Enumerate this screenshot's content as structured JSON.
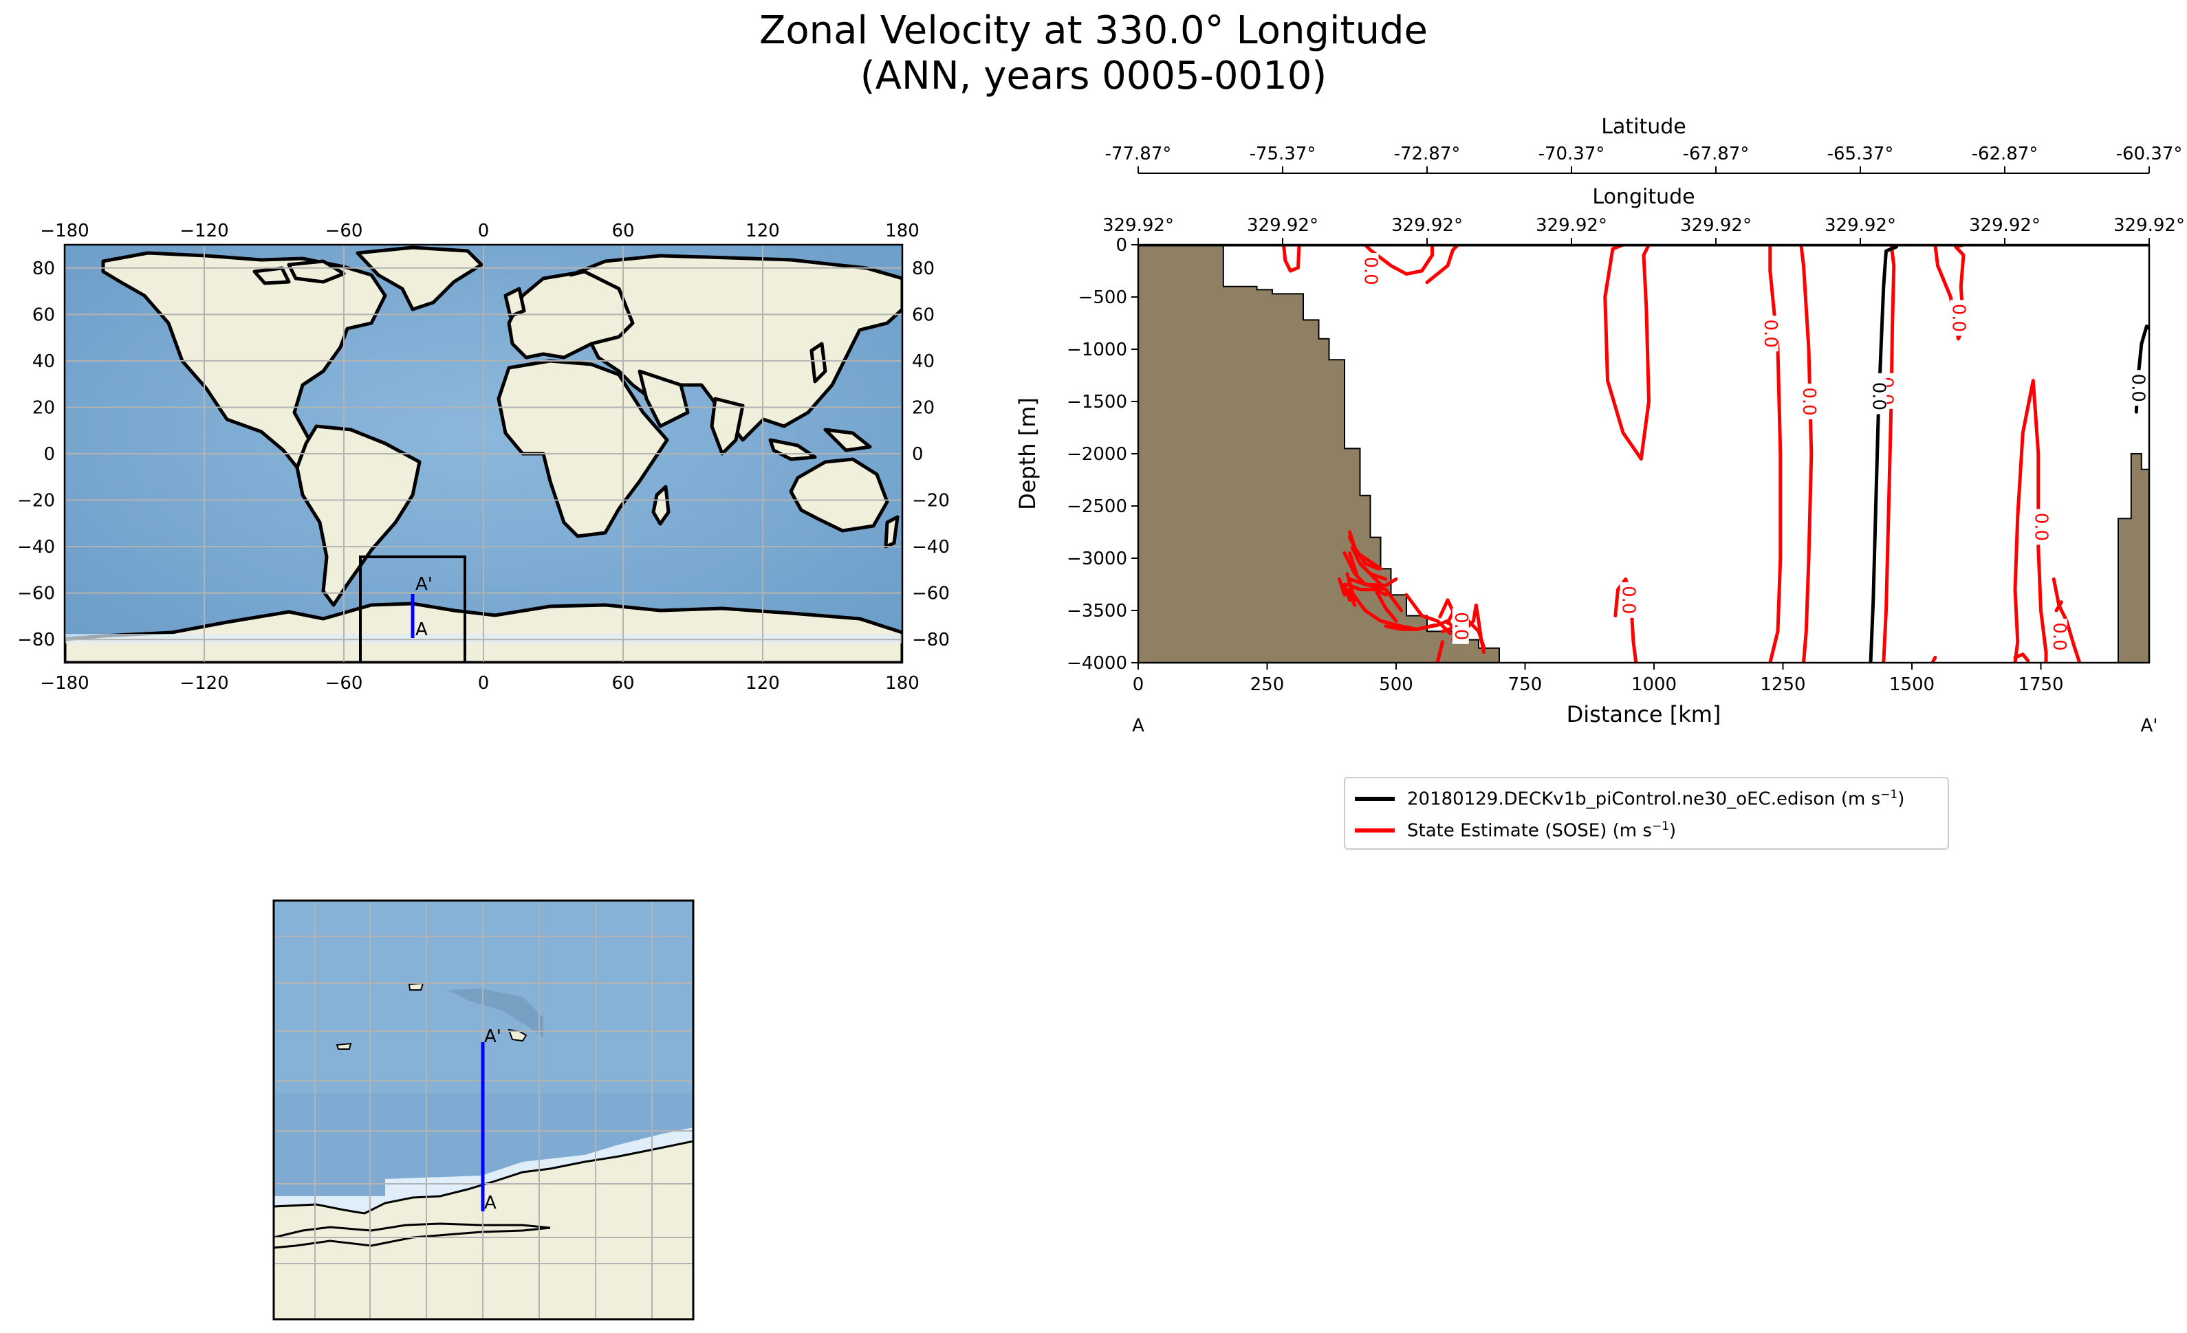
{
  "title": {
    "line1": "Zonal Velocity at 330.0° Longitude",
    "line2": "(ANN, years 0005-0010)"
  },
  "colors": {
    "ocean": "#7fabd2",
    "land": "#efefdb",
    "ice": "#e0eefa",
    "grid": "#b3b3b3",
    "bathymetry": "#8f8064",
    "model_contour": "#000000",
    "obs_contour": "#ff0000",
    "transect": "#0000ff"
  },
  "world_map": {
    "x_ticks": [
      "−180",
      "−120",
      "−60",
      "0",
      "60",
      "120",
      "180"
    ],
    "y_ticks": [
      "80",
      "60",
      "40",
      "20",
      "0",
      "−20",
      "−40",
      "−60",
      "−80"
    ],
    "transect_start_label": "A",
    "transect_end_label": "A'"
  },
  "inset_map": {
    "transect_start_label": "A",
    "transect_end_label": "A'"
  },
  "chart_data": {
    "type": "contour",
    "xlabel": "Distance [km]",
    "ylabel": "Depth [m]",
    "xlim": [
      0,
      1960
    ],
    "ylim": [
      -4000,
      0
    ],
    "x_ticks": [
      "0",
      "250",
      "500",
      "750",
      "1000",
      "1250",
      "1500",
      "1750"
    ],
    "y_ticks": [
      "0",
      "−500",
      "−1000",
      "−1500",
      "−2000",
      "−2500",
      "−3000",
      "−3500",
      "−4000"
    ],
    "start_label": "A",
    "end_label": "A'",
    "top_axes": [
      {
        "label": "Latitude",
        "ticks": [
          "-77.87°",
          "-75.37°",
          "-72.87°",
          "-70.37°",
          "-67.87°",
          "-65.37°",
          "-62.87°",
          "-60.37°"
        ]
      },
      {
        "label": "Longitude",
        "ticks": [
          "329.92°",
          "329.92°",
          "329.92°",
          "329.92°",
          "329.92°",
          "329.92°",
          "329.92°",
          "329.92°"
        ]
      }
    ],
    "series": [
      {
        "name": "20180129.DECKv1b_piControl.ne30_oEC.edison",
        "unit_prefix": "(m s",
        "unit_exp": "−1",
        "unit_suffix": ")",
        "color": "#000000",
        "contour_level": "0.0"
      },
      {
        "name": "State Estimate (SOSE)",
        "unit_prefix": "(m s",
        "unit_exp": "−1",
        "unit_suffix": ")",
        "color": "#ff0000",
        "contour_level": "0.0"
      }
    ],
    "bathymetry_depth": [
      [
        0,
        0
      ],
      [
        165,
        0
      ],
      [
        165,
        -400
      ],
      [
        230,
        -400
      ],
      [
        230,
        -430
      ],
      [
        260,
        -430
      ],
      [
        260,
        -470
      ],
      [
        320,
        -470
      ],
      [
        320,
        -720
      ],
      [
        350,
        -720
      ],
      [
        350,
        -900
      ],
      [
        370,
        -900
      ],
      [
        370,
        -1100
      ],
      [
        400,
        -1100
      ],
      [
        400,
        -1950
      ],
      [
        430,
        -1950
      ],
      [
        430,
        -2400
      ],
      [
        450,
        -2400
      ],
      [
        450,
        -2800
      ],
      [
        470,
        -2800
      ],
      [
        470,
        -3100
      ],
      [
        490,
        -3100
      ],
      [
        490,
        -3350
      ],
      [
        520,
        -3350
      ],
      [
        520,
        -3550
      ],
      [
        560,
        -3550
      ],
      [
        560,
        -3700
      ],
      [
        610,
        -3700
      ],
      [
        610,
        -3780
      ],
      [
        660,
        -3780
      ],
      [
        660,
        -3860
      ],
      [
        700,
        -3860
      ],
      [
        700,
        -4000
      ],
      [
        0,
        -4000
      ]
    ],
    "bathymetry_right": [
      [
        1960,
        -4000
      ],
      [
        1900,
        -4000
      ],
      [
        1900,
        -2620
      ],
      [
        1925,
        -2620
      ],
      [
        1925,
        -2000
      ],
      [
        1945,
        -2000
      ],
      [
        1945,
        -2150
      ],
      [
        1960,
        -2150
      ]
    ],
    "model_zero_contours": [
      [
        [
          1420,
          -4000
        ],
        [
          1425,
          -3400
        ],
        [
          1430,
          -2500
        ],
        [
          1435,
          -1600
        ],
        [
          1440,
          -1000
        ],
        [
          1445,
          -400
        ],
        [
          1450,
          -60
        ],
        [
          1470,
          -20
        ]
      ],
      [
        [
          1935,
          -1600
        ],
        [
          1938,
          -1300
        ],
        [
          1945,
          -950
        ],
        [
          1955,
          -780
        ],
        [
          1960,
          -800
        ]
      ]
    ],
    "obs_zero_contours": [
      [
        [
          282,
          0
        ],
        [
          285,
          -150
        ],
        [
          295,
          -250
        ],
        [
          310,
          -220
        ],
        [
          312,
          0
        ]
      ],
      [
        [
          410,
          -2750
        ],
        [
          420,
          -2900
        ],
        [
          440,
          -3050
        ],
        [
          465,
          -3100
        ]
      ],
      [
        [
          520,
          -3350
        ],
        [
          550,
          -3550
        ],
        [
          580,
          -3600
        ]
      ],
      [
        [
          590,
          -3700
        ],
        [
          620,
          -3650
        ],
        [
          640,
          -3600
        ]
      ],
      [
        [
          460,
          -3300
        ],
        [
          480,
          -3480
        ],
        [
          500,
          -3600
        ]
      ],
      [
        [
          400,
          -3250
        ],
        [
          410,
          -3400
        ]
      ],
      [
        [
          640,
          -3600
        ],
        [
          660,
          -3700
        ],
        [
          670,
          -3850
        ]
      ],
      [
        [
          405,
          -3300
        ],
        [
          420,
          -3450
        ]
      ],
      [
        [
          480,
          -3650
        ],
        [
          510,
          -3680
        ],
        [
          540,
          -3680
        ],
        [
          575,
          -3640
        ]
      ],
      [
        [
          405,
          -3250
        ],
        [
          430,
          -3300
        ],
        [
          460,
          -3300
        ],
        [
          480,
          -3350
        ]
      ],
      [
        [
          390,
          -3200
        ],
        [
          400,
          -3350
        ]
      ],
      [
        [
          410,
          -3200
        ],
        [
          440,
          -3250
        ],
        [
          480,
          -3260
        ],
        [
          500,
          -3200
        ]
      ],
      [
        [
          415,
          -2900
        ],
        [
          430,
          -3050
        ],
        [
          450,
          -3150
        ],
        [
          480,
          -3200
        ]
      ],
      [
        [
          410,
          -3300
        ],
        [
          440,
          -3500
        ],
        [
          470,
          -3600
        ],
        [
          510,
          -3650
        ],
        [
          540,
          -3680
        ],
        [
          580,
          -3640
        ],
        [
          600,
          -3600
        ],
        [
          615,
          -3700
        ]
      ],
      [
        [
          400,
          -2950
        ],
        [
          420,
          -3150
        ],
        [
          440,
          -3250
        ],
        [
          480,
          -3300
        ],
        [
          510,
          -3500
        ]
      ],
      [
        [
          430,
          -3050
        ],
        [
          470,
          -3250
        ]
      ],
      [
        [
          580,
          -3600
        ],
        [
          605,
          -3720
        ]
      ],
      [
        [
          410,
          -2950
        ],
        [
          425,
          -3180
        ]
      ],
      [
        [
          610,
          -3780
        ],
        [
          630,
          -3700
        ],
        [
          650,
          -3600
        ],
        [
          655,
          -3450
        ],
        [
          660,
          -3600
        ],
        [
          665,
          -3780
        ],
        [
          670,
          -3900
        ]
      ],
      [
        [
          600,
          -3620
        ],
        [
          612,
          -3500
        ],
        [
          622,
          -3620
        ]
      ],
      [
        [
          585,
          -3560
        ],
        [
          600,
          -3400
        ],
        [
          615,
          -3560
        ]
      ],
      [
        [
          580,
          -4000
        ],
        [
          590,
          -3800
        ]
      ],
      [
        [
          405,
          -3150
        ],
        [
          420,
          -3400
        ]
      ],
      [
        [
          410,
          -2800
        ],
        [
          425,
          -2950
        ],
        [
          455,
          -3050
        ],
        [
          470,
          -3100
        ]
      ],
      [
        [
          440,
          0
        ],
        [
          450,
          -50
        ],
        [
          490,
          -200
        ],
        [
          520,
          -280
        ],
        [
          550,
          -250
        ],
        [
          570,
          -100
        ],
        [
          570,
          0
        ]
      ],
      [
        [
          560,
          -360
        ],
        [
          575,
          -300
        ],
        [
          600,
          -200
        ],
        [
          610,
          -50
        ],
        [
          620,
          0
        ]
      ],
      [
        [
          925,
          -3550
        ],
        [
          930,
          -3300
        ],
        [
          945,
          -3200
        ],
        [
          955,
          -3400
        ],
        [
          960,
          -3800
        ],
        [
          965,
          -4000
        ]
      ],
      [
        [
          940,
          0
        ],
        [
          920,
          -40
        ],
        [
          905,
          -500
        ],
        [
          910,
          -1300
        ],
        [
          940,
          -1800
        ],
        [
          975,
          -2050
        ],
        [
          990,
          -1500
        ],
        [
          985,
          -600
        ],
        [
          980,
          -100
        ],
        [
          990,
          0
        ]
      ],
      [
        [
          1225,
          -4000
        ],
        [
          1240,
          -3700
        ],
        [
          1245,
          -3000
        ],
        [
          1245,
          -2000
        ],
        [
          1240,
          -1000
        ],
        [
          1225,
          -250
        ],
        [
          1225,
          0
        ]
      ],
      [
        [
          1285,
          0
        ],
        [
          1290,
          -200
        ],
        [
          1300,
          -1000
        ],
        [
          1305,
          -2000
        ],
        [
          1300,
          -3000
        ],
        [
          1295,
          -3700
        ],
        [
          1290,
          -4000
        ]
      ],
      [
        [
          1445,
          -4000
        ],
        [
          1450,
          -3500
        ],
        [
          1455,
          -2500
        ],
        [
          1460,
          -1500
        ],
        [
          1462,
          -800
        ],
        [
          1465,
          -200
        ],
        [
          1460,
          0
        ]
      ],
      [
        [
          1545,
          0
        ],
        [
          1550,
          -200
        ],
        [
          1575,
          -500
        ],
        [
          1580,
          -650
        ],
        [
          1590,
          -900
        ],
        [
          1600,
          -800
        ],
        [
          1595,
          -400
        ],
        [
          1600,
          -100
        ],
        [
          1585,
          -20
        ],
        [
          1600,
          0
        ]
      ],
      [
        [
          1540,
          -4000
        ],
        [
          1545,
          -3950
        ]
      ],
      [
        [
          1700,
          -4000
        ],
        [
          1705,
          -3800
        ],
        [
          1700,
          -3300
        ],
        [
          1705,
          -2600
        ],
        [
          1715,
          -1800
        ],
        [
          1735,
          -1300
        ],
        [
          1745,
          -2000
        ],
        [
          1745,
          -2900
        ],
        [
          1750,
          -3500
        ],
        [
          1760,
          -3900
        ],
        [
          1760,
          -4000
        ]
      ],
      [
        [
          1700,
          -3950
        ],
        [
          1715,
          -3920
        ],
        [
          1725,
          -3980
        ]
      ],
      [
        [
          1775,
          -3200
        ],
        [
          1785,
          -3450
        ],
        [
          1800,
          -3600
        ],
        [
          1815,
          -3850
        ],
        [
          1825,
          -4000
        ]
      ],
      [
        [
          1780,
          -3500
        ],
        [
          1790,
          -3420
        ]
      ]
    ],
    "model_labels": [
      [
        1435,
        -1450
      ],
      [
        1938,
        -1370
      ]
    ],
    "obs_labels": [
      [
        450,
        -250
      ],
      [
        1225,
        -850
      ],
      [
        1300,
        -1500
      ],
      [
        1590,
        -700
      ],
      [
        1750,
        -2700
      ],
      [
        625,
        -3650
      ],
      [
        950,
        -3400
      ],
      [
        1785,
        -3750
      ],
      [
        1450,
        -1400
      ]
    ]
  }
}
